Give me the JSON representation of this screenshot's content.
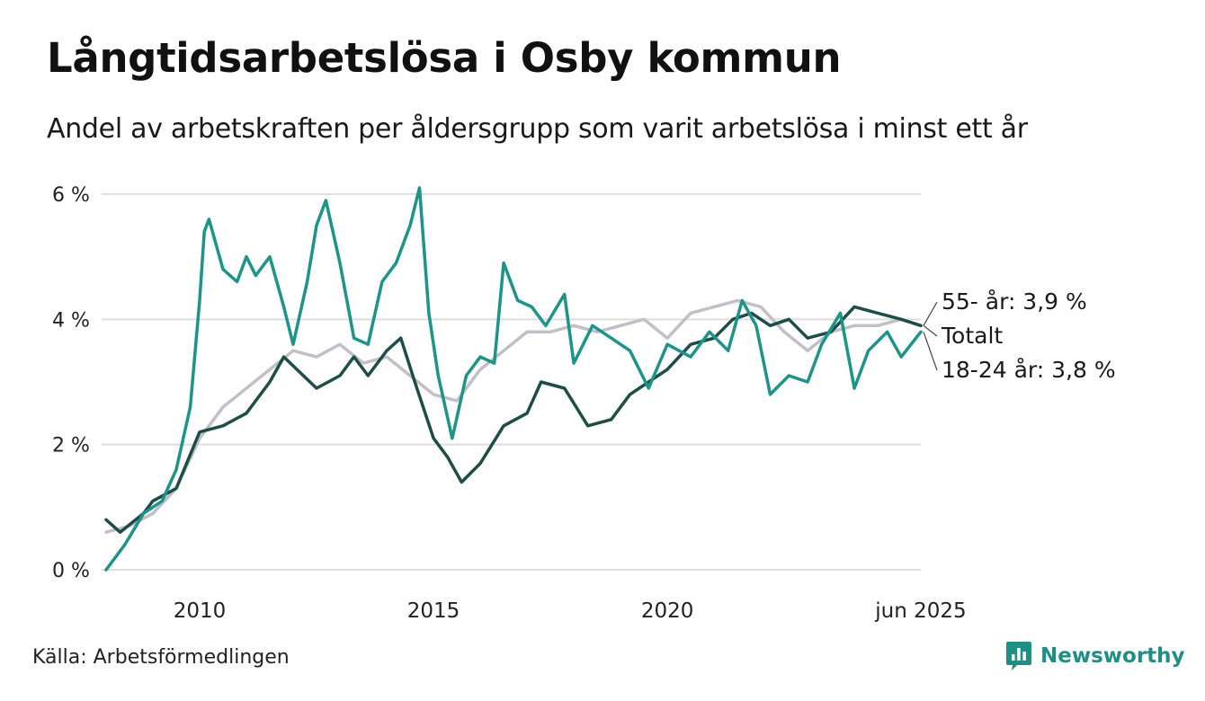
{
  "title": "Långtidsarbetslösa i Osby kommun",
  "subtitle": "Andel av arbetskraften per åldersgrupp som varit arbetslösa i minst ett år",
  "source": "Källa: Arbetsförmedlingen",
  "brand": "Newsworthy",
  "brand_icon": "newsworthy-logo-icon",
  "colors": {
    "series_55": "#1e4d47",
    "series_total": "#c2bfc9",
    "series_18_24": "#1d9488",
    "grid": "#dedede",
    "brand": "#1f8f85"
  },
  "chart_data": {
    "type": "line",
    "ylim": [
      0,
      6
    ],
    "xlim": [
      2008.0,
      2025.42
    ],
    "y_ticks": [
      {
        "value": 0,
        "label": "0 %"
      },
      {
        "value": 2,
        "label": "2 %"
      },
      {
        "value": 4,
        "label": "4 %"
      },
      {
        "value": 6,
        "label": "6 %"
      }
    ],
    "x_ticks": [
      {
        "value": 2010,
        "label": "2010"
      },
      {
        "value": 2015,
        "label": "2015"
      },
      {
        "value": 2020,
        "label": "2020"
      },
      {
        "value": 2025.42,
        "label": "jun 2025"
      }
    ],
    "grid": true,
    "series": [
      {
        "key": "total",
        "end_label": "Totalt",
        "color": "#c2bfc9",
        "points": [
          [
            2008.0,
            0.6
          ],
          [
            2008.5,
            0.7
          ],
          [
            2009.0,
            0.9
          ],
          [
            2009.5,
            1.3
          ],
          [
            2010.0,
            2.1
          ],
          [
            2010.5,
            2.6
          ],
          [
            2011.0,
            2.9
          ],
          [
            2011.5,
            3.2
          ],
          [
            2012.0,
            3.5
          ],
          [
            2012.5,
            3.4
          ],
          [
            2013.0,
            3.6
          ],
          [
            2013.5,
            3.3
          ],
          [
            2014.0,
            3.4
          ],
          [
            2014.5,
            3.1
          ],
          [
            2015.0,
            2.8
          ],
          [
            2015.5,
            2.7
          ],
          [
            2016.0,
            3.2
          ],
          [
            2016.5,
            3.5
          ],
          [
            2017.0,
            3.8
          ],
          [
            2017.5,
            3.8
          ],
          [
            2018.0,
            3.9
          ],
          [
            2018.5,
            3.8
          ],
          [
            2019.0,
            3.9
          ],
          [
            2019.5,
            4.0
          ],
          [
            2020.0,
            3.7
          ],
          [
            2020.5,
            4.1
          ],
          [
            2021.0,
            4.2
          ],
          [
            2021.5,
            4.3
          ],
          [
            2022.0,
            4.2
          ],
          [
            2022.5,
            3.8
          ],
          [
            2023.0,
            3.5
          ],
          [
            2023.5,
            3.8
          ],
          [
            2024.0,
            3.9
          ],
          [
            2024.5,
            3.9
          ],
          [
            2025.0,
            4.0
          ],
          [
            2025.42,
            3.9
          ]
        ]
      },
      {
        "key": "age_55",
        "end_label": "55- år: 3,9 %",
        "color": "#1e4d47",
        "points": [
          [
            2008.0,
            0.8
          ],
          [
            2008.3,
            0.6
          ],
          [
            2008.8,
            0.9
          ],
          [
            2009.0,
            1.1
          ],
          [
            2009.5,
            1.3
          ],
          [
            2010.0,
            2.2
          ],
          [
            2010.5,
            2.3
          ],
          [
            2011.0,
            2.5
          ],
          [
            2011.5,
            3.0
          ],
          [
            2011.8,
            3.4
          ],
          [
            2012.5,
            2.9
          ],
          [
            2013.0,
            3.1
          ],
          [
            2013.3,
            3.4
          ],
          [
            2013.6,
            3.1
          ],
          [
            2014.0,
            3.5
          ],
          [
            2014.3,
            3.7
          ],
          [
            2014.6,
            3.0
          ],
          [
            2015.0,
            2.1
          ],
          [
            2015.3,
            1.8
          ],
          [
            2015.6,
            1.4
          ],
          [
            2016.0,
            1.7
          ],
          [
            2016.5,
            2.3
          ],
          [
            2017.0,
            2.5
          ],
          [
            2017.3,
            3.0
          ],
          [
            2017.8,
            2.9
          ],
          [
            2018.3,
            2.3
          ],
          [
            2018.8,
            2.4
          ],
          [
            2019.2,
            2.8
          ],
          [
            2019.6,
            3.0
          ],
          [
            2020.0,
            3.2
          ],
          [
            2020.5,
            3.6
          ],
          [
            2021.0,
            3.7
          ],
          [
            2021.4,
            4.0
          ],
          [
            2021.8,
            4.1
          ],
          [
            2022.2,
            3.9
          ],
          [
            2022.6,
            4.0
          ],
          [
            2023.0,
            3.7
          ],
          [
            2023.5,
            3.8
          ],
          [
            2024.0,
            4.2
          ],
          [
            2024.5,
            4.1
          ],
          [
            2025.0,
            4.0
          ],
          [
            2025.42,
            3.9
          ]
        ]
      },
      {
        "key": "age_18_24",
        "end_label": "18-24 år: 3,8 %",
        "color": "#1d9488",
        "points": [
          [
            2008.0,
            0.0
          ],
          [
            2008.4,
            0.4
          ],
          [
            2008.8,
            0.9
          ],
          [
            2009.2,
            1.1
          ],
          [
            2009.5,
            1.6
          ],
          [
            2009.8,
            2.6
          ],
          [
            2010.0,
            4.3
          ],
          [
            2010.1,
            5.4
          ],
          [
            2010.2,
            5.6
          ],
          [
            2010.5,
            4.8
          ],
          [
            2010.8,
            4.6
          ],
          [
            2011.0,
            5.0
          ],
          [
            2011.2,
            4.7
          ],
          [
            2011.5,
            5.0
          ],
          [
            2011.8,
            4.2
          ],
          [
            2012.0,
            3.6
          ],
          [
            2012.3,
            4.6
          ],
          [
            2012.5,
            5.5
          ],
          [
            2012.7,
            5.9
          ],
          [
            2013.0,
            4.9
          ],
          [
            2013.3,
            3.7
          ],
          [
            2013.6,
            3.6
          ],
          [
            2013.9,
            4.6
          ],
          [
            2014.2,
            4.9
          ],
          [
            2014.5,
            5.5
          ],
          [
            2014.7,
            6.1
          ],
          [
            2014.9,
            4.1
          ],
          [
            2015.1,
            3.1
          ],
          [
            2015.4,
            2.1
          ],
          [
            2015.7,
            3.1
          ],
          [
            2016.0,
            3.4
          ],
          [
            2016.3,
            3.3
          ],
          [
            2016.5,
            4.9
          ],
          [
            2016.8,
            4.3
          ],
          [
            2017.1,
            4.2
          ],
          [
            2017.4,
            3.9
          ],
          [
            2017.8,
            4.4
          ],
          [
            2018.0,
            3.3
          ],
          [
            2018.4,
            3.9
          ],
          [
            2018.8,
            3.7
          ],
          [
            2019.2,
            3.5
          ],
          [
            2019.6,
            2.9
          ],
          [
            2020.0,
            3.6
          ],
          [
            2020.5,
            3.4
          ],
          [
            2020.9,
            3.8
          ],
          [
            2021.3,
            3.5
          ],
          [
            2021.6,
            4.3
          ],
          [
            2021.9,
            3.9
          ],
          [
            2022.2,
            2.8
          ],
          [
            2022.6,
            3.1
          ],
          [
            2023.0,
            3.0
          ],
          [
            2023.3,
            3.6
          ],
          [
            2023.7,
            4.1
          ],
          [
            2024.0,
            2.9
          ],
          [
            2024.3,
            3.5
          ],
          [
            2024.7,
            3.8
          ],
          [
            2025.0,
            3.4
          ],
          [
            2025.42,
            3.8
          ]
        ]
      }
    ]
  }
}
